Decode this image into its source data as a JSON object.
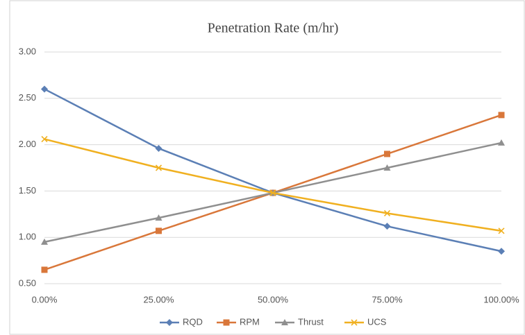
{
  "chart_data": {
    "type": "line",
    "title": "Penetration Rate (m/hr)",
    "categories": [
      "0.00%",
      "25.00%",
      "50.00%",
      "75.00%",
      "100.00%"
    ],
    "series": [
      {
        "name": "RQD",
        "color": "#5b7fb5",
        "marker": "diamond",
        "values": [
          2.6,
          1.96,
          1.48,
          1.12,
          0.85
        ]
      },
      {
        "name": "RPM",
        "color": "#d9773a",
        "marker": "square",
        "values": [
          0.65,
          1.07,
          1.48,
          1.9,
          2.32
        ]
      },
      {
        "name": "Thrust",
        "color": "#8f8f8f",
        "marker": "triangle",
        "values": [
          0.95,
          1.21,
          1.48,
          1.75,
          2.02
        ]
      },
      {
        "name": "UCS",
        "color": "#f0b020",
        "marker": "x",
        "values": [
          2.06,
          1.75,
          1.48,
          1.26,
          1.07
        ]
      }
    ],
    "ylim": [
      0.5,
      3
    ],
    "yticks": [
      {
        "value": 0.5,
        "label": "0.50"
      },
      {
        "value": 1,
        "label": "1.00"
      },
      {
        "value": 1.5,
        "label": "1.50"
      },
      {
        "value": 2,
        "label": "2.00"
      },
      {
        "value": 2.5,
        "label": "2.50"
      },
      {
        "value": 3,
        "label": "3.00"
      }
    ],
    "grid": true,
    "legend": "bottom"
  }
}
